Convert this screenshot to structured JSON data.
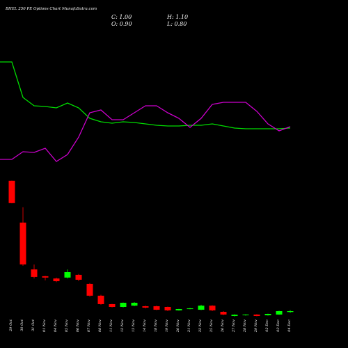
{
  "chart_data": {
    "type": "candlestick",
    "title": "BHEL 250 PE Options Chart MunafaSutra.com",
    "ohlc_labels": [
      "C: 1.00",
      "H: 1.10",
      "O: 0.90",
      "L: 0.80"
    ],
    "categories": [
      "29 Oct",
      "30 Oct",
      "31 Oct",
      "01 Nov",
      "04 Nov",
      "05 Nov",
      "06 Nov",
      "07 Nov",
      "08 Nov",
      "11 Nov",
      "12 Nov",
      "13 Nov",
      "14 Nov",
      "18 Nov",
      "19 Nov",
      "20 Nov",
      "21 Nov",
      "22 Nov",
      "25 Nov",
      "26 Nov",
      "27 Nov",
      "28 Nov",
      "29 Nov",
      "02 Dec",
      "03 Dec",
      "04 Dec"
    ],
    "open": [
      15.38,
      10.77,
      5.6,
      4.85,
      4.6,
      4.7,
      5.0,
      4.0,
      2.7,
      1.77,
      1.46,
      1.6,
      1.54,
      1.54,
      1.46,
      1.08,
      1.25,
      1.15,
      1.6,
      0.92,
      0.46,
      0.55,
      0.62,
      0.54,
      0.62,
      0.9
    ],
    "high": [
      15.4,
      12.46,
      6.15,
      4.9,
      4.7,
      5.6,
      5.1,
      4.1,
      2.8,
      1.8,
      1.95,
      2.0,
      1.6,
      1.6,
      1.5,
      1.25,
      1.35,
      1.7,
      1.65,
      1.0,
      0.65,
      0.65,
      0.66,
      0.72,
      1.05,
      1.1
    ],
    "low": [
      12.9,
      6.0,
      4.6,
      4.4,
      4.2,
      4.6,
      4.3,
      2.6,
      1.7,
      1.4,
      1.4,
      1.55,
      1.3,
      1.1,
      1.0,
      1.05,
      1.2,
      1.1,
      1.0,
      0.55,
      0.4,
      0.5,
      0.42,
      0.5,
      0.6,
      0.8
    ],
    "close": [
      12.92,
      6.15,
      4.77,
      4.7,
      4.3,
      5.3,
      4.46,
      2.7,
      1.77,
      1.46,
      1.92,
      1.92,
      1.38,
      1.15,
      1.08,
      1.23,
      1.3,
      1.6,
      1.08,
      0.62,
      0.6,
      0.62,
      0.46,
      0.69,
      1.0,
      1.0
    ],
    "up_color": "#00ff00",
    "down_color": "#ff0000",
    "ylim": [
      0,
      16.9
    ],
    "lines": [
      {
        "color": "#00dd00",
        "values": [
          151,
          100,
          88,
          87,
          85,
          92,
          85,
          70,
          65,
          63,
          65,
          64,
          62,
          60,
          59,
          59,
          60,
          60,
          62,
          59,
          56,
          55,
          55,
          55,
          55,
          56
        ]
      },
      {
        "color": "#cc00cc",
        "values": [
          11,
          22,
          21,
          27,
          8,
          18,
          43,
          78,
          82,
          68,
          68,
          78,
          88,
          88,
          78,
          70,
          57,
          70,
          90,
          93,
          93,
          93,
          80,
          62,
          52,
          58
        ]
      }
    ],
    "line_ylim": [
      0,
      160
    ]
  }
}
